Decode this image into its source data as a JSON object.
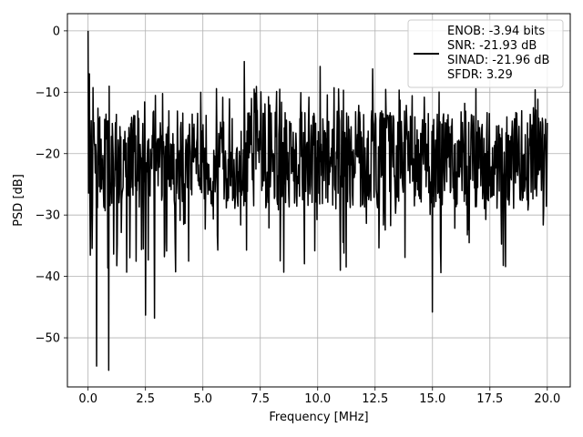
{
  "chart_data": {
    "type": "line",
    "title": "",
    "xlabel": "Frequency [MHz]",
    "ylabel": "PSD [dB]",
    "xlim": [
      -0.9,
      21.0
    ],
    "ylim": [
      -58.0,
      2.8
    ],
    "xticks": [
      0.0,
      2.5,
      5.0,
      7.5,
      10.0,
      12.5,
      15.0,
      17.5,
      20.0
    ],
    "xtick_labels": [
      "0.0",
      "2.5",
      "5.0",
      "7.5",
      "10.0",
      "12.5",
      "15.0",
      "17.5",
      "20.0"
    ],
    "yticks": [
      0,
      -10,
      -20,
      -30,
      -40,
      -50
    ],
    "ytick_labels": [
      "0",
      "−10",
      "−20",
      "−30",
      "−40",
      "−50"
    ],
    "grid": true,
    "legend_position": "top-right",
    "series": [
      {
        "name": "ENOB: -3.94 bits\nSNR: -21.93 dB\nSINAD: -21.96 dB\nSFDR: 3.29",
        "color": "#000000",
        "legend_lines": [
          "ENOB: -3.94 bits",
          "SNR: -21.93 dB",
          "SINAD: -21.96 dB",
          "SFDR: 3.29"
        ],
        "x_range": [
          0.0,
          20.0
        ],
        "num_points": 1024,
        "noise_floor_db": -21.0,
        "features": [
          {
            "x": 0.0,
            "y": 0.0
          },
          {
            "x": 0.05,
            "y": -7.0
          },
          {
            "x": 0.38,
            "y": -54.6
          },
          {
            "x": 0.9,
            "y": -55.3
          },
          {
            "x": 2.5,
            "y": -46.3
          },
          {
            "x": 2.9,
            "y": -46.8
          },
          {
            "x": 6.8,
            "y": -5.0
          },
          {
            "x": 10.1,
            "y": -5.8
          },
          {
            "x": 12.4,
            "y": -6.2
          },
          {
            "x": 15.0,
            "y": -45.8
          },
          {
            "x": 20.0,
            "y": -15.0
          }
        ]
      }
    ]
  }
}
